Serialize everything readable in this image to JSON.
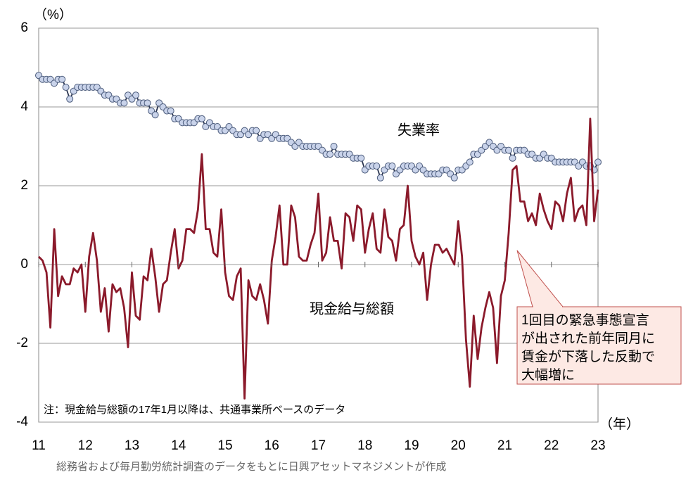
{
  "chart_data": {
    "type": "line",
    "y_axis_label": "（%）",
    "x_axis_label": "（年）",
    "x": [
      11,
      11.083,
      11.167,
      11.25,
      11.333,
      11.417,
      11.5,
      11.583,
      11.667,
      11.75,
      11.833,
      11.917,
      12,
      12.083,
      12.167,
      12.25,
      12.333,
      12.417,
      12.5,
      12.583,
      12.667,
      12.75,
      12.833,
      12.917,
      13,
      13.083,
      13.167,
      13.25,
      13.333,
      13.417,
      13.5,
      13.583,
      13.667,
      13.75,
      13.833,
      13.917,
      14,
      14.083,
      14.167,
      14.25,
      14.333,
      14.417,
      14.5,
      14.583,
      14.667,
      14.75,
      14.833,
      14.917,
      15,
      15.083,
      15.167,
      15.25,
      15.333,
      15.417,
      15.5,
      15.583,
      15.667,
      15.75,
      15.833,
      15.917,
      16,
      16.083,
      16.167,
      16.25,
      16.333,
      16.417,
      16.5,
      16.583,
      16.667,
      16.75,
      16.833,
      16.917,
      17,
      17.083,
      17.167,
      17.25,
      17.333,
      17.417,
      17.5,
      17.583,
      17.667,
      17.75,
      17.833,
      17.917,
      18,
      18.083,
      18.167,
      18.25,
      18.333,
      18.417,
      18.5,
      18.583,
      18.667,
      18.75,
      18.833,
      18.917,
      19,
      19.083,
      19.167,
      19.25,
      19.333,
      19.417,
      19.5,
      19.583,
      19.667,
      19.75,
      19.833,
      19.917,
      20,
      20.083,
      20.167,
      20.25,
      20.333,
      20.417,
      20.5,
      20.583,
      20.667,
      20.75,
      20.833,
      20.917,
      21,
      21.083,
      21.167,
      21.25,
      21.333,
      21.417,
      21.5,
      21.583,
      21.667,
      21.75,
      21.833,
      21.917,
      22,
      22.083,
      22.167,
      22.25,
      22.333,
      22.417,
      22.5,
      22.583,
      22.667,
      22.75,
      22.833,
      22.917,
      23
    ],
    "series": [
      {
        "name": "失業率",
        "color": "#2b3550",
        "marker_color": "#c9d3ea",
        "markers": true,
        "values": [
          4.8,
          4.7,
          4.7,
          4.7,
          4.6,
          4.7,
          4.7,
          4.5,
          4.2,
          4.4,
          4.5,
          4.5,
          4.5,
          4.5,
          4.5,
          4.5,
          4.4,
          4.3,
          4.3,
          4.2,
          4.2,
          4.1,
          4.1,
          4.3,
          4.2,
          4.3,
          4.1,
          4.1,
          4.1,
          3.9,
          3.8,
          4.1,
          4.0,
          3.9,
          3.9,
          3.7,
          3.7,
          3.6,
          3.6,
          3.6,
          3.6,
          3.7,
          3.7,
          3.5,
          3.6,
          3.5,
          3.5,
          3.4,
          3.4,
          3.5,
          3.4,
          3.3,
          3.3,
          3.4,
          3.3,
          3.4,
          3.4,
          3.2,
          3.3,
          3.3,
          3.2,
          3.3,
          3.2,
          3.2,
          3.2,
          3.1,
          3.0,
          3.1,
          3.0,
          3.0,
          3.0,
          3.0,
          3.0,
          2.9,
          2.8,
          2.8,
          3.0,
          2.8,
          2.8,
          2.8,
          2.8,
          2.7,
          2.7,
          2.7,
          2.4,
          2.5,
          2.5,
          2.5,
          2.2,
          2.4,
          2.5,
          2.5,
          2.3,
          2.4,
          2.5,
          2.5,
          2.5,
          2.4,
          2.5,
          2.4,
          2.3,
          2.3,
          2.3,
          2.3,
          2.4,
          2.4,
          2.3,
          2.2,
          2.4,
          2.4,
          2.5,
          2.6,
          2.8,
          2.8,
          2.9,
          3.0,
          3.1,
          3.0,
          2.9,
          3.0,
          2.9,
          2.9,
          2.7,
          2.9,
          2.9,
          2.9,
          2.8,
          2.8,
          2.7,
          2.7,
          2.8,
          2.7,
          2.7,
          2.6,
          2.6,
          2.6,
          2.6,
          2.6,
          2.6,
          2.5,
          2.6,
          2.5,
          2.5,
          2.4,
          2.6
        ]
      },
      {
        "name": "現金給与総額",
        "color": "#8b1a2b",
        "markers": false,
        "values": [
          0.2,
          0.1,
          -0.2,
          -1.6,
          0.9,
          -0.8,
          -0.3,
          -0.5,
          -0.5,
          -0.1,
          -0.2,
          0.0,
          -1.2,
          0.2,
          0.8,
          0.1,
          -1.2,
          -0.6,
          -1.7,
          -0.5,
          -0.7,
          -0.6,
          -1.1,
          -2.1,
          -0.2,
          -1.3,
          -1.4,
          -0.3,
          -0.4,
          0.4,
          -0.3,
          -1.2,
          -0.5,
          -0.4,
          0.3,
          0.9,
          -0.1,
          0.1,
          0.9,
          0.9,
          0.8,
          1.4,
          2.8,
          0.9,
          0.9,
          0.3,
          0.2,
          1.4,
          -0.2,
          -0.8,
          -0.9,
          -0.3,
          -0.1,
          -3.4,
          -0.4,
          -0.8,
          -0.9,
          -0.5,
          -0.9,
          -1.5,
          0.1,
          0.7,
          1.5,
          0.0,
          0.0,
          1.5,
          1.2,
          0.2,
          0.1,
          0.1,
          0.5,
          0.8,
          1.8,
          0.1,
          0.3,
          1.2,
          0.6,
          0.6,
          -0.1,
          1.3,
          1.2,
          0.6,
          1.5,
          1.4,
          0.3,
          0.9,
          1.3,
          0.4,
          0.3,
          1.4,
          0.7,
          0.6,
          0.1,
          0.9,
          1.0,
          2.0,
          0.6,
          0.2,
          0.0,
          0.3,
          -0.9,
          0.0,
          0.5,
          0.5,
          0.3,
          0.4,
          0.2,
          0.0,
          1.1,
          0.2,
          -1.9,
          -3.1,
          -1.3,
          -2.4,
          -1.6,
          -1.1,
          -0.7,
          -1.1,
          -2.5,
          -0.8,
          -0.4,
          0.8,
          2.4,
          2.5,
          1.6,
          1.6,
          1.1,
          1.3,
          1.0,
          1.8,
          1.4,
          1.1,
          0.9,
          1.6,
          1.5,
          1.1,
          1.8,
          2.2,
          1.1,
          1.4,
          1.5,
          1.0,
          3.7,
          1.1,
          1.9
        ]
      }
    ],
    "xlim": [
      11,
      23
    ],
    "xticks": [
      11,
      12,
      13,
      14,
      15,
      16,
      17,
      18,
      19,
      20,
      21,
      22,
      23
    ],
    "ylim": [
      -4,
      6
    ],
    "yticks": [
      -4,
      -2,
      0,
      2,
      4,
      6
    ],
    "grid": true,
    "annotations": [
      "失業率",
      "現金給与総額",
      "注：現金給与総額の17年1月以降は、共通事業所ベースのデータ"
    ],
    "callout": [
      "1回目の緊急事態宣言",
      "が出された前年同月に",
      "賃金が下落した反動で",
      "大幅増に"
    ],
    "source": "総務省および毎月勤労統計調査のデータをもとに日興アセットマネジメントが作成"
  }
}
